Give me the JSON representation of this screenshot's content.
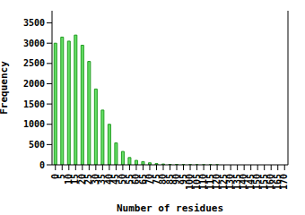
{
  "chart_data": {
    "type": "bar",
    "x_label": "Number of residues",
    "y_label": "Frequency",
    "categories": [
      "0",
      "5",
      "10",
      "15",
      "20",
      "25",
      "30",
      "35",
      "40",
      "45",
      "50",
      "55",
      "60",
      "65",
      "70",
      "75",
      "80",
      "85",
      "90",
      "95",
      "100",
      "105",
      "110",
      "115",
      "120",
      "125",
      "130",
      "135",
      "140",
      "145",
      "150",
      "155",
      "160",
      "165",
      "170"
    ],
    "values": [
      3000,
      3150,
      3050,
      3200,
      2950,
      2550,
      1870,
      1350,
      1000,
      540,
      330,
      180,
      110,
      80,
      50,
      30,
      20,
      10,
      8,
      5,
      3,
      2,
      1,
      1,
      1,
      0,
      0,
      0,
      0,
      0,
      0,
      0,
      0,
      0,
      0
    ],
    "color": "#66e066",
    "ylim": [
      0,
      3800
    ],
    "yticks": [
      0,
      500,
      1000,
      1500,
      2000,
      2500,
      3000,
      3500
    ]
  }
}
